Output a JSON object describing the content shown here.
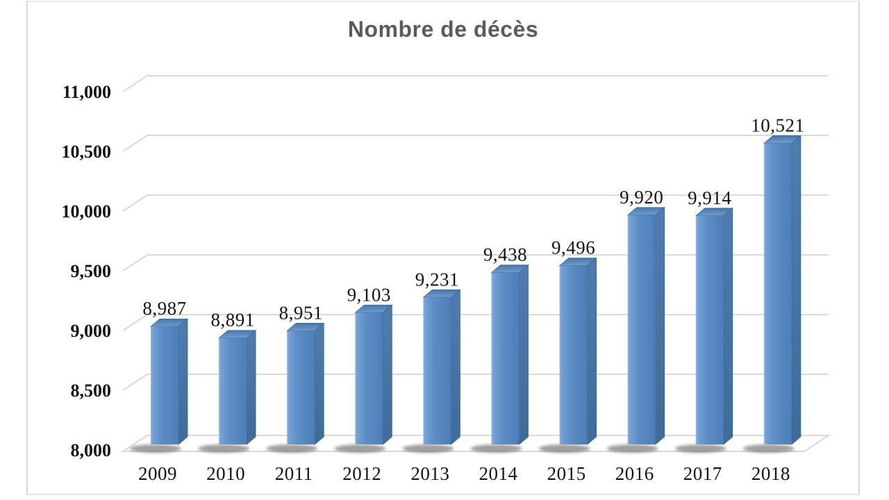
{
  "chart_data": {
    "type": "bar",
    "style": "3d",
    "title": "Nombre de décès",
    "xlabel": "",
    "ylabel": "",
    "categories": [
      "2009",
      "2010",
      "2011",
      "2012",
      "2013",
      "2014",
      "2015",
      "2016",
      "2017",
      "2018"
    ],
    "values": [
      8987,
      8891,
      8951,
      9103,
      9231,
      9438,
      9496,
      9920,
      9914,
      10521
    ],
    "value_labels": [
      "8,987",
      "8,891",
      "8,951",
      "9,103",
      "9,231",
      "9,438",
      "9,496",
      "9,920",
      "9,914",
      "10,521"
    ],
    "ylim": [
      8000,
      11000
    ],
    "ytick_step": 500,
    "ytick_labels": [
      "8,000",
      "8,500",
      "9,000",
      "9,500",
      "10,000",
      "10,500",
      "11,000"
    ],
    "grid": true,
    "legend": false,
    "colors": {
      "bar_front": "#5d8dc6",
      "bar_front_highlight": "#8fb4e0",
      "bar_side": "#44719f",
      "bar_top": "#5a88ba",
      "gridline": "#d9d9d9",
      "frame_border": "#d8d8d8",
      "title_text": "#575c63",
      "axis_text": "#141414",
      "background": "#ffffff",
      "shadow": "#3c3c3c"
    }
  }
}
